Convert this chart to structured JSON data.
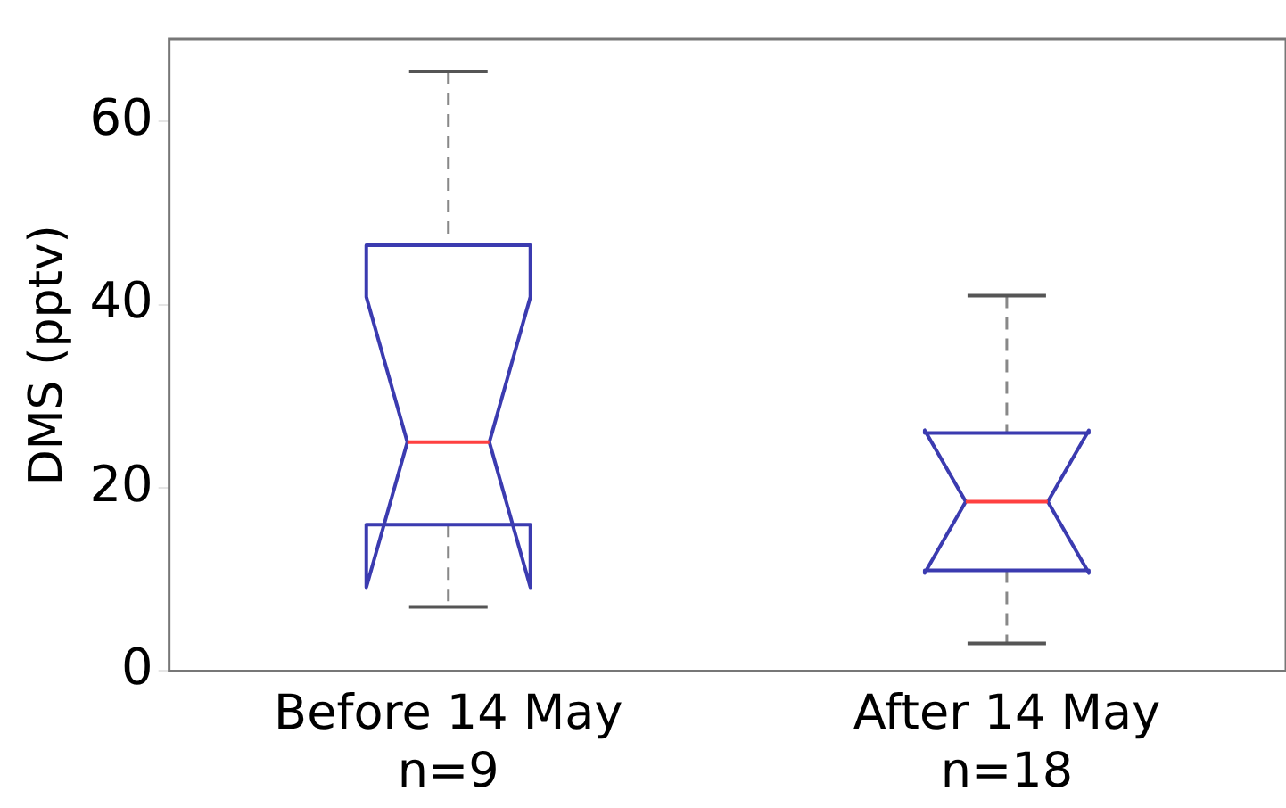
{
  "chart_data": {
    "type": "box",
    "ylabel": "DMS (pptv)",
    "categories": [
      "Before 14 May\nn=9",
      "After 14 May\nn=18"
    ],
    "boxes": [
      {
        "low": 7,
        "q1": 16,
        "median": 25,
        "q3": 46.5,
        "high": 65.5
      },
      {
        "low": 3,
        "q1": 11,
        "median": 18.5,
        "q3": 26,
        "high": 41
      }
    ],
    "ylim": [
      0,
      69
    ],
    "yticks": [
      0,
      20,
      40,
      60
    ],
    "grid": false,
    "legend": false
  }
}
